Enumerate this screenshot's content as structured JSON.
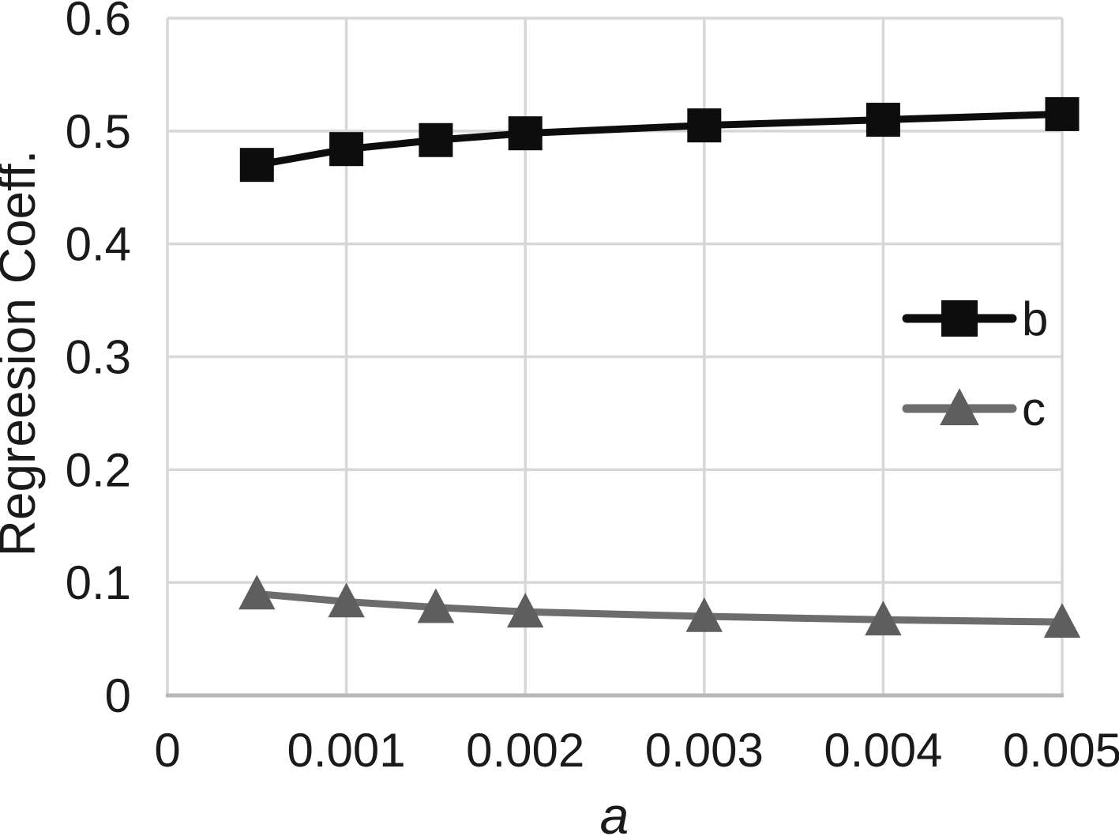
{
  "chart_data": {
    "type": "line",
    "title": "",
    "xlabel": "a",
    "ylabel": "Regreesion Coeff.",
    "x": [
      0.0005,
      0.001,
      0.0015,
      0.002,
      0.003,
      0.004,
      0.005
    ],
    "series": [
      {
        "name": "b",
        "marker": "square",
        "line_color": "#0d0d0d",
        "marker_color": "#0d0d0d",
        "values": [
          0.47,
          0.484,
          0.492,
          0.498,
          0.505,
          0.51,
          0.515
        ]
      },
      {
        "name": "c",
        "marker": "triangle",
        "line_color": "#6d6d6d",
        "marker_color": "#5e5e5e",
        "values": [
          0.09,
          0.083,
          0.078,
          0.074,
          0.07,
          0.067,
          0.065
        ]
      }
    ],
    "xlim": [
      0,
      0.005
    ],
    "ylim": [
      0,
      0.6
    ],
    "x_ticks": [
      {
        "value": 0,
        "label": "0"
      },
      {
        "value": 0.001,
        "label": "0.001"
      },
      {
        "value": 0.002,
        "label": "0.002"
      },
      {
        "value": 0.003,
        "label": "0.003"
      },
      {
        "value": 0.004,
        "label": "0.004"
      },
      {
        "value": 0.005,
        "label": "0.005"
      }
    ],
    "y_ticks": [
      {
        "value": 0,
        "label": "0"
      },
      {
        "value": 0.1,
        "label": "0.1"
      },
      {
        "value": 0.2,
        "label": "0.2"
      },
      {
        "value": 0.3,
        "label": "0.3"
      },
      {
        "value": 0.4,
        "label": "0.4"
      },
      {
        "value": 0.5,
        "label": "0.5"
      },
      {
        "value": 0.6,
        "label": "0.6"
      }
    ],
    "grid": true,
    "legend_position": "inside-right",
    "colors": {
      "grid": "#d7d7d7",
      "axis": "#b7b7b7",
      "background": "#ffffff",
      "text": "#1a1a1a"
    }
  }
}
